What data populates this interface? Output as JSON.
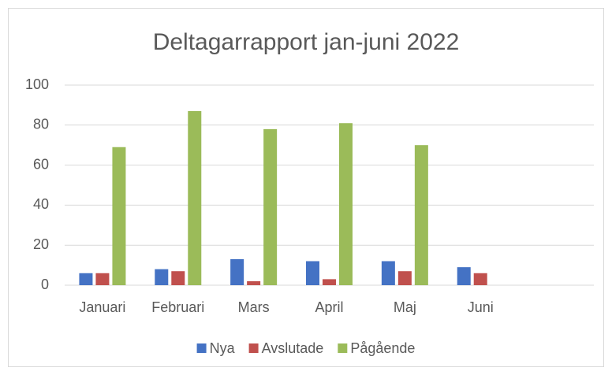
{
  "chart_data": {
    "type": "bar",
    "title": "Deltagarrapport jan-juni 2022",
    "categories": [
      "Januari",
      "Februari",
      "Mars",
      "April",
      "Maj",
      "Juni",
      null
    ],
    "series": [
      {
        "name": "Nya",
        "color": "#4472c4",
        "values": [
          6,
          8,
          13,
          12,
          12,
          9,
          null
        ]
      },
      {
        "name": "Avslutade",
        "color": "#c0504d",
        "values": [
          6,
          7,
          2,
          3,
          7,
          6,
          null
        ]
      },
      {
        "name": "Pågående",
        "color": "#9bbb59",
        "values": [
          69,
          87,
          78,
          81,
          70,
          null,
          null
        ]
      }
    ],
    "ylim": [
      0,
      100
    ],
    "yticks": [
      0,
      20,
      40,
      60,
      80,
      100
    ],
    "grid": true,
    "legend": "bottom"
  }
}
